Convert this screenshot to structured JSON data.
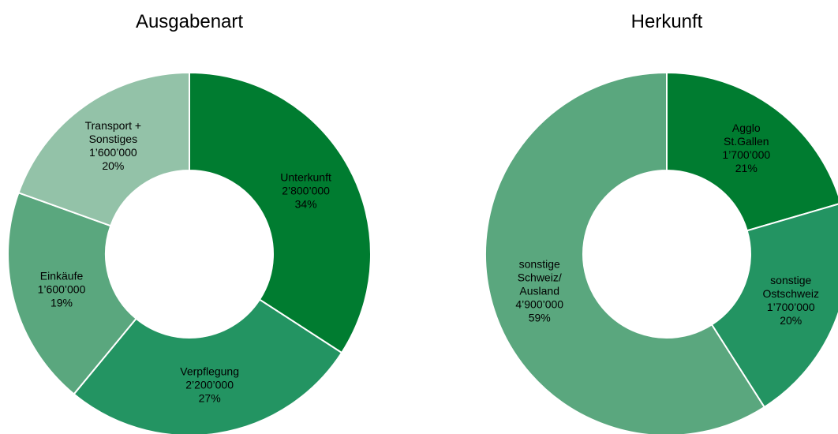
{
  "chart_data": [
    {
      "type": "pie",
      "title": "Ausgabenart",
      "categories": [
        "Unterkunft",
        "Verpflegung",
        "Einkäufe",
        "Transport +\nSonstiges"
      ],
      "values": [
        2800000,
        2200000,
        1600000,
        1600000
      ],
      "value_labels": [
        "2’800’000",
        "2’200’000",
        "1’600’000",
        "1’600’000"
      ],
      "percentages": [
        34,
        27,
        19,
        20
      ],
      "percentage_labels": [
        "34%",
        "27%",
        "19%",
        "20%"
      ],
      "colors": [
        "#007c30",
        "#239462",
        "#5aa77e",
        "#93c2a8"
      ]
    },
    {
      "type": "pie",
      "title": "Herkunft",
      "categories": [
        "Agglo\nSt.Gallen",
        "sonstige\nOstschweiz",
        "sonstige\nSchweiz/\nAusland"
      ],
      "values": [
        1700000,
        1700000,
        4900000
      ],
      "value_labels": [
        "1’700’000",
        "1’700’000",
        "4’900’000"
      ],
      "percentages": [
        21,
        20,
        59
      ],
      "percentage_labels": [
        "21%",
        "20%",
        "59%"
      ],
      "colors": [
        "#007c30",
        "#239462",
        "#5aa77e"
      ]
    }
  ]
}
